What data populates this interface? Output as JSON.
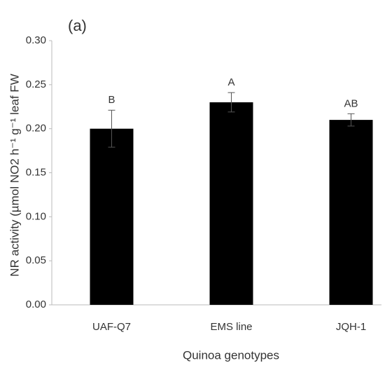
{
  "chart_data": {
    "type": "bar",
    "panel_label": "(a)",
    "x_label": "Quinoa genotypes",
    "y_label": "NR activity (µmol NO2 h⁻¹ g⁻¹ leaf FW",
    "categories": [
      "UAF-Q7",
      "EMS line",
      "JQH-1"
    ],
    "values": [
      0.2,
      0.23,
      0.21
    ],
    "errors": [
      0.021,
      0.011,
      0.007
    ],
    "annotations": [
      "B",
      "A",
      "AB"
    ],
    "color": "#000000",
    "ylim": [
      0,
      0.3
    ],
    "yticks": [
      {
        "value": 0,
        "label": "0.00"
      },
      {
        "value": 0.05,
        "label": "0.05"
      },
      {
        "value": 0.1,
        "label": "0.10"
      },
      {
        "value": 0.15,
        "label": "0.15"
      },
      {
        "value": 0.2,
        "label": "0.20"
      },
      {
        "value": 0.25,
        "label": "0.25"
      },
      {
        "value": 0.3,
        "label": "0.30"
      }
    ]
  }
}
